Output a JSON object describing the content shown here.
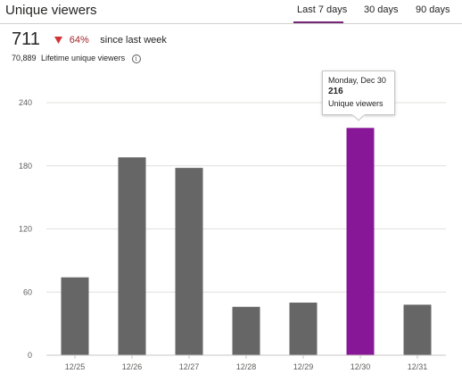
{
  "header": {
    "title": "Unique viewers",
    "tabs": [
      {
        "label": "Last 7 days",
        "active": true
      },
      {
        "label": "30 days",
        "active": false
      },
      {
        "label": "90 days",
        "active": false
      }
    ]
  },
  "summary": {
    "value": "711",
    "change_pct": "64%",
    "change_direction": "down",
    "since": "since last week",
    "lifetime_value": "70,889",
    "lifetime_label": "Lifetime unique viewers"
  },
  "tooltip": {
    "date": "Monday, Dec 30",
    "value": "216",
    "label": "Unique viewers"
  },
  "colors": {
    "bar": "#666666",
    "highlight": "#881798",
    "accent": "#742774",
    "decrease": "#d13438"
  },
  "chart_data": {
    "type": "bar",
    "categories": [
      "12/25",
      "12/26",
      "12/27",
      "12/28",
      "12/29",
      "12/30",
      "12/31"
    ],
    "values": [
      74,
      188,
      178,
      46,
      50,
      216,
      48
    ],
    "highlighted_index": 5,
    "yticks": [
      0,
      60,
      120,
      180,
      240
    ],
    "ylim": [
      0,
      240
    ],
    "title": "",
    "xlabel": "",
    "ylabel": "",
    "grid": true
  }
}
